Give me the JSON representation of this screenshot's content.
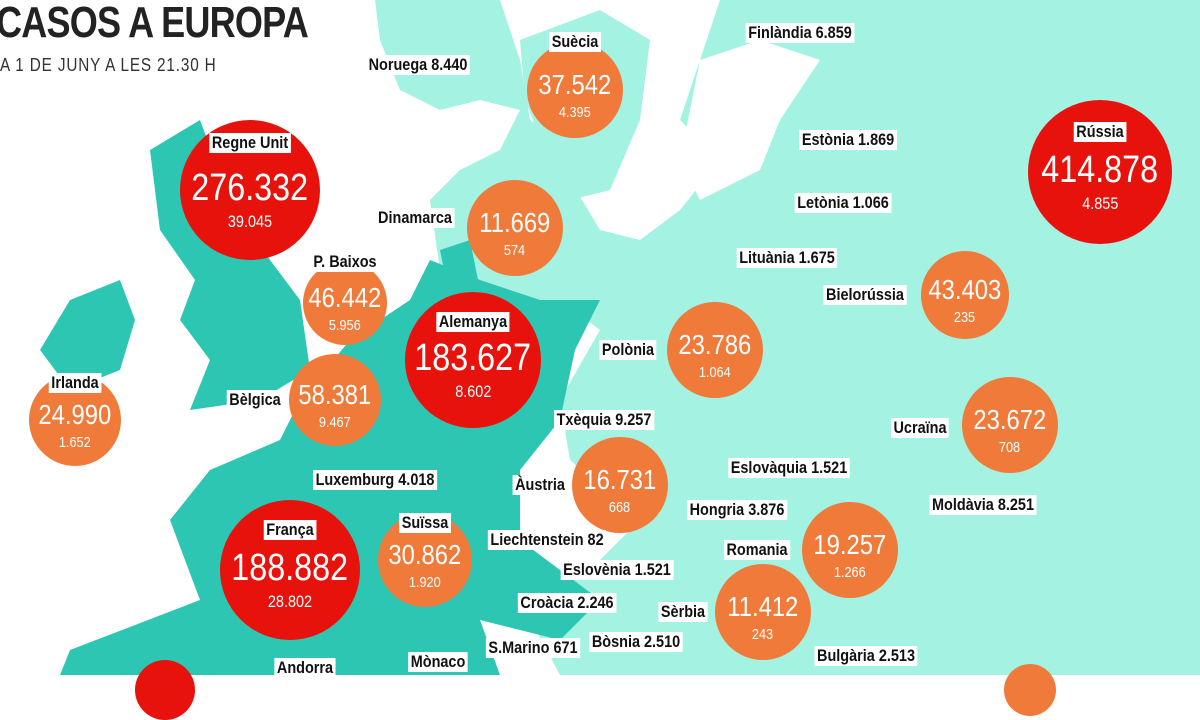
{
  "header": {
    "title": "CASOS A EUROPA",
    "subtitle": "A 1 DE JUNY A LES 21.30 H"
  },
  "colors": {
    "high": "#e8120c",
    "medium": "#f07a3a",
    "land_light": "#a3f2e2",
    "land_dark": "#2dc6b2"
  },
  "bubbles": [
    {
      "name": "Suècia",
      "cases": "37.542",
      "deaths": "4.395",
      "level": "medium"
    },
    {
      "name": "Regne Unit",
      "cases": "276.332",
      "deaths": "39.045",
      "level": "high"
    },
    {
      "name": "Dinamarca",
      "cases": "11.669",
      "deaths": "574",
      "level": "medium"
    },
    {
      "name": "P. Baixos",
      "cases": "46.442",
      "deaths": "5.956",
      "level": "medium"
    },
    {
      "name": "Alemanya",
      "cases": "183.627",
      "deaths": "8.602",
      "level": "high"
    },
    {
      "name": "Irlanda",
      "cases": "24.990",
      "deaths": "1.652",
      "level": "medium"
    },
    {
      "name": "Bèlgica",
      "cases": "58.381",
      "deaths": "9.467",
      "level": "medium"
    },
    {
      "name": "França",
      "cases": "188.882",
      "deaths": "28.802",
      "level": "high"
    },
    {
      "name": "Suïssa",
      "cases": "30.862",
      "deaths": "1.920",
      "level": "medium"
    },
    {
      "name": "Àustria",
      "cases": "16.731",
      "deaths": "668",
      "level": "medium"
    },
    {
      "name": "Polònia",
      "cases": "23.786",
      "deaths": "1.064",
      "level": "medium"
    },
    {
      "name": "Romania",
      "cases": "19.257",
      "deaths": "1.266",
      "level": "medium"
    },
    {
      "name": "Sèrbia",
      "cases": "11.412",
      "deaths": "243",
      "level": "medium"
    },
    {
      "name": "Bielorússia",
      "cases": "43.403",
      "deaths": "235",
      "level": "medium"
    },
    {
      "name": "Ucraïna",
      "cases": "23.672",
      "deaths": "708",
      "level": "medium"
    },
    {
      "name": "Rússia",
      "cases": "414.878",
      "deaths": "4.855",
      "level": "high"
    }
  ],
  "labels": [
    "Noruega 8.440",
    "Finlàndia 6.859",
    "Estònia 1.869",
    "Letònia 1.066",
    "Lituània 1.675",
    "Txèquia 9.257",
    "Luxemburg 4.018",
    "Eslovàquia 1.521",
    "Hongria 3.876",
    "Moldàvia 8.251",
    "Liechtenstein 82",
    "Eslovènia 1.521",
    "Croàcia 2.246",
    "Bòsnia 2.510",
    "S.Marino 671",
    "Bulgària 2.513",
    "Andorra",
    "Mònaco"
  ]
}
